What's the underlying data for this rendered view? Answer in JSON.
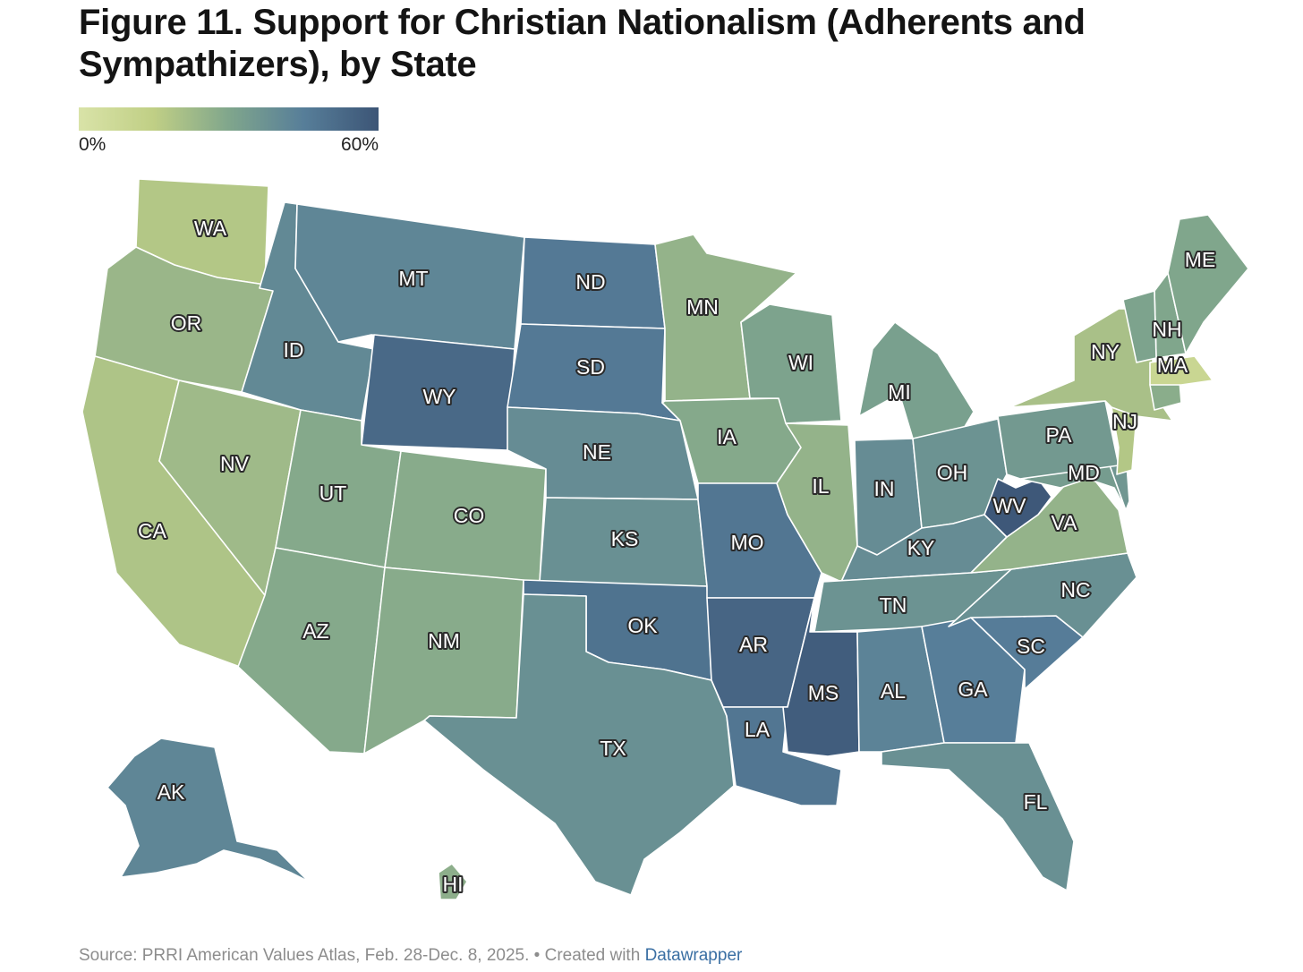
{
  "title": "Figure 11. Support for Christian Nationalism (Adherents and Sympathizers), by State",
  "legend": {
    "min_label": "0%",
    "max_label": "60%",
    "gradient": [
      "#d9e3a8",
      "#c0cf85",
      "#80a68c",
      "#577e99",
      "#3c5576"
    ]
  },
  "map": {
    "states": [
      {
        "abbr": "WA",
        "level": 0.3
      },
      {
        "abbr": "OR",
        "level": 0.4
      },
      {
        "abbr": "CA",
        "level": 0.32
      },
      {
        "abbr": "NV",
        "level": 0.38
      },
      {
        "abbr": "ID",
        "level": 0.68
      },
      {
        "abbr": "MT",
        "level": 0.7
      },
      {
        "abbr": "WY",
        "level": 0.88
      },
      {
        "abbr": "UT",
        "level": 0.48
      },
      {
        "abbr": "CO",
        "level": 0.47
      },
      {
        "abbr": "AZ",
        "level": 0.48
      },
      {
        "abbr": "NM",
        "level": 0.47
      },
      {
        "abbr": "ND",
        "level": 0.78
      },
      {
        "abbr": "SD",
        "level": 0.78
      },
      {
        "abbr": "NE",
        "level": 0.66
      },
      {
        "abbr": "KS",
        "level": 0.64
      },
      {
        "abbr": "OK",
        "level": 0.82
      },
      {
        "abbr": "TX",
        "level": 0.64
      },
      {
        "abbr": "MN",
        "level": 0.42
      },
      {
        "abbr": "IA",
        "level": 0.48
      },
      {
        "abbr": "MO",
        "level": 0.8
      },
      {
        "abbr": "AR",
        "level": 0.9
      },
      {
        "abbr": "LA",
        "level": 0.8
      },
      {
        "abbr": "WI",
        "level": 0.52
      },
      {
        "abbr": "IL",
        "level": 0.42
      },
      {
        "abbr": "MI",
        "level": 0.54
      },
      {
        "abbr": "IN",
        "level": 0.66
      },
      {
        "abbr": "OH",
        "level": 0.62
      },
      {
        "abbr": "KY",
        "level": 0.66
      },
      {
        "abbr": "TN",
        "level": 0.62
      },
      {
        "abbr": "MS",
        "level": 0.95
      },
      {
        "abbr": "AL",
        "level": 0.72
      },
      {
        "abbr": "GA",
        "level": 0.75
      },
      {
        "abbr": "FL",
        "level": 0.64
      },
      {
        "abbr": "SC",
        "level": 0.76
      },
      {
        "abbr": "NC",
        "level": 0.64
      },
      {
        "abbr": "VA",
        "level": 0.42
      },
      {
        "abbr": "WV",
        "level": 0.98
      },
      {
        "abbr": "MD",
        "level": 0.56
      },
      {
        "abbr": "DE",
        "level": 0.6
      },
      {
        "abbr": "PA",
        "level": 0.58
      },
      {
        "abbr": "NJ",
        "level": 0.3
      },
      {
        "abbr": "NY",
        "level": 0.34
      },
      {
        "abbr": "CT",
        "level": 0.46
      },
      {
        "abbr": "MA",
        "level": 0.16
      },
      {
        "abbr": "NH",
        "level": 0.5
      },
      {
        "abbr": "VT",
        "level": 0.52
      },
      {
        "abbr": "ME",
        "level": 0.5
      },
      {
        "abbr": "AK",
        "level": 0.7
      },
      {
        "abbr": "HI",
        "level": 0.45
      }
    ]
  },
  "footer": {
    "source": "Source: PRRI American Values Atlas, Feb. 28-Dec. 8, 2025. • Created with ",
    "link": "Datawrapper"
  }
}
